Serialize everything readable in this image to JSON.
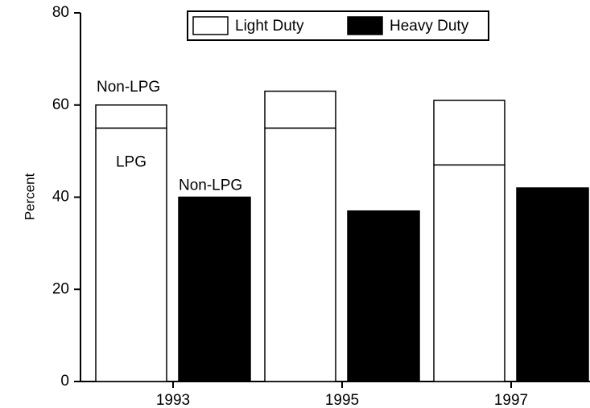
{
  "chart_data": {
    "type": "bar",
    "y_label": "Percent",
    "categories": [
      "1993",
      "1995",
      "1997"
    ],
    "legend": [
      {
        "name": "Light Duty",
        "color": "#ffffff"
      },
      {
        "name": "Heavy Duty",
        "color": "#000000"
      }
    ],
    "series": [
      {
        "name": "LPG",
        "bar": 0,
        "color": "#ffffff",
        "values": [
          55,
          55,
          47
        ]
      },
      {
        "name": "Non-LPG",
        "bar": 0,
        "color": "#ffffff",
        "values": [
          5,
          8,
          14
        ]
      },
      {
        "name": "Non-LPG",
        "bar": 1,
        "color": "#000000",
        "values": [
          40,
          37,
          42
        ]
      }
    ],
    "ylim": [
      0,
      80
    ],
    "yticks": [
      0,
      20,
      40,
      60,
      80
    ]
  }
}
